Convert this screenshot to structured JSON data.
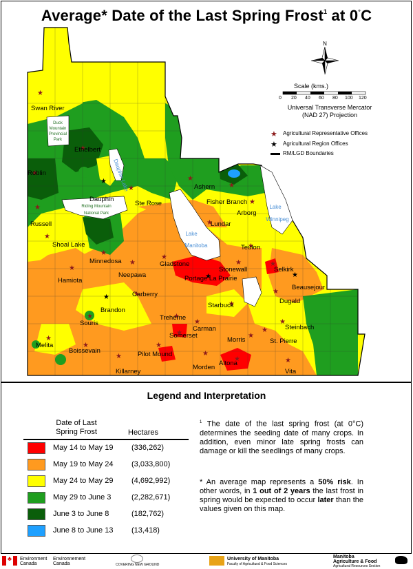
{
  "title": "Average* Date of the Last Spring Frost",
  "title_sup": "1",
  "title_suffix": " at 0",
  "title_deg": "°",
  "title_end": "C",
  "north_letter": "N",
  "scale": {
    "title": "Scale (kms.)",
    "ticks": [
      "0",
      "20",
      "40",
      "60",
      "80",
      "100",
      "120"
    ],
    "projection_line1": "Universal Transverse Mercator",
    "projection_line2": "(NAD 27) Projection"
  },
  "map_legend": {
    "rep_offices": "Agricultural Representative Offices",
    "region_offices": "Agricultural Region Offices",
    "boundaries": "RM/LGD Boundaries"
  },
  "parks": {
    "duck_mountain": [
      "Duck",
      "Mountain",
      "Provincial",
      "Park"
    ],
    "riding_mountain": [
      "Riding Mountain",
      "National Park"
    ]
  },
  "lakes": {
    "dauphin": "Dauphin Lake",
    "manitoba": [
      "Lake",
      "Manitoba"
    ],
    "winnipeg": [
      "Lake",
      "Winnipeg"
    ]
  },
  "towns": [
    "Swan River",
    "Ethelbert",
    "Roblin",
    "Dauphin",
    "Ste Rose",
    "Ashern",
    "Fisher Branch",
    "Arborg",
    "Russell",
    "Lundar",
    "Shoal Lake",
    "Teulon",
    "Minnedosa",
    "Gladstone",
    "Neepawa",
    "Stonewall",
    "Selkirk",
    "Hamiota",
    "Portage La Prairie",
    "Beausejour",
    "Carberry",
    "Dugald",
    "Brandon",
    "Starbuck",
    "Treherne",
    "Souris",
    "Steinbach",
    "Somerset",
    "Carman",
    "Morris",
    "St. Pierre",
    "Melita",
    "Boissevain",
    "Pilot Mound",
    "Killarney",
    "Morden",
    "Altona",
    "Vita"
  ],
  "legend": {
    "title": "Legend and Interpretation",
    "col_date": "Date of Last Spring Frost",
    "col_area": "Hectares",
    "rows": [
      {
        "label": "May 14 to May 19",
        "hectares": "(336,262)",
        "color": "#ff0000"
      },
      {
        "label": "May 19 to May 24",
        "hectares": "(3,033,800)",
        "color": "#ff9a1f"
      },
      {
        "label": "May 24 to May 29",
        "hectares": "(4,692,992)",
        "color": "#ffff00"
      },
      {
        "label": "May 29 to June 3",
        "hectares": "(2,282,671)",
        "color": "#1f9e1f"
      },
      {
        "label": "June 3 to June 8",
        "hectares": "(182,762)",
        "color": "#0a5e0a"
      },
      {
        "label": "June 8 to June 13",
        "hectares": "(13,418)",
        "color": "#1ea0ff"
      }
    ]
  },
  "notes": {
    "note1_marker": "1",
    "note1": "The date of the last spring frost (at 0°C) determines the seeding date of many crops. In addition, even minor late spring frosts can damage or kill the seedlings of many crops.",
    "note2_pre": "* An average map represents a ",
    "note2_bold1": "50% risk",
    "note2_mid1": ". In other words, in ",
    "note2_bold2": "1  out of 2  years",
    "note2_mid2": "  the last frost in spring  would be  expected to occur ",
    "note2_bold3": "later",
    "note2_post": "  than the values given on this map."
  },
  "footer": {
    "ec_en": "Environment Canada",
    "ec_fr": "Environnement Canada",
    "covering": "COVERING NEW GROUND",
    "um_line1": "University of Manitoba",
    "um_line2": "Faculty of Agricultural & Food Sciences",
    "maf_line1": "Manitoba",
    "maf_line2": "Agriculture & Food",
    "maf_line3": "Agricultural Resources Section"
  },
  "colors": {
    "red": "#ff0000",
    "orange": "#ff9a1f",
    "yellow": "#ffff00",
    "green": "#1f9e1f",
    "darkgreen": "#0a5e0a",
    "blue": "#1ea0ff",
    "lake": "#ffffff",
    "star": "#8b1a1a"
  }
}
